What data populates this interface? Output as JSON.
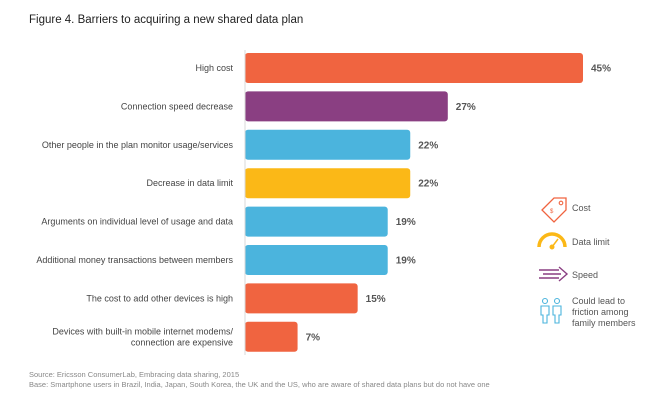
{
  "chart_data": {
    "type": "bar",
    "orientation": "horizontal",
    "title": "Figure 4. Barriers to acquiring a new shared data plan",
    "categories": [
      [
        "High cost"
      ],
      [
        "Connection speed decrease"
      ],
      [
        "Other people in the plan monitor usage/services"
      ],
      [
        "Decrease in data limit"
      ],
      [
        "Arguments on individual level of usage and data"
      ],
      [
        "Additional money transactions between members"
      ],
      [
        "The cost to add other devices is high"
      ],
      [
        "Devices with built-in mobile internet modems/",
        "connection are expensive"
      ]
    ],
    "values": [
      45,
      27,
      22,
      22,
      19,
      19,
      15,
      7
    ],
    "value_labels": [
      "45%",
      "27%",
      "22%",
      "22%",
      "19%",
      "19%",
      "15%",
      "7%"
    ],
    "bar_groups": [
      "cost",
      "speed",
      "friction",
      "data_limit",
      "friction",
      "friction",
      "cost",
      "cost"
    ],
    "xlim": [
      0,
      45
    ],
    "grid": false,
    "legend_position": "right",
    "legend": [
      {
        "key": "cost",
        "lines": [
          "Cost"
        ],
        "icon": "price-tag-icon"
      },
      {
        "key": "data_limit",
        "lines": [
          "Data limit"
        ],
        "icon": "gauge-icon"
      },
      {
        "key": "speed",
        "lines": [
          "Speed"
        ],
        "icon": "speed-arrow-icon"
      },
      {
        "key": "friction",
        "lines": [
          "Could lead to",
          "friction among",
          "family members"
        ],
        "icon": "family-icon"
      }
    ]
  },
  "colors": {
    "cost": "#f06440",
    "speed": "#8a3f82",
    "friction": "#4bb4dd",
    "data_limit": "#fbb817",
    "icon_cost": "#f06440",
    "icon_data_limit": "#fbb817",
    "icon_speed": "#8a3f82",
    "icon_friction": "#4bb4dd"
  },
  "footer": {
    "source": "Source: Ericsson ConsumerLab, Embracing data sharing, 2015",
    "base": "Base: Smartphone users in Brazil, India, Japan, South Korea, the UK and the US, who are aware of shared data plans but do not have one"
  }
}
